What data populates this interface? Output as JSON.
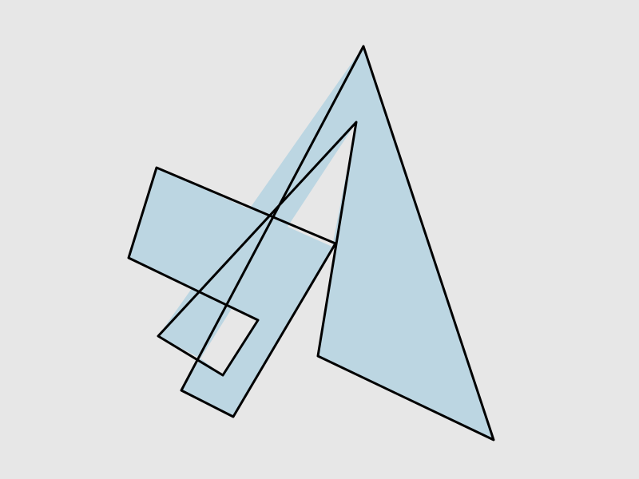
{
  "colors": {
    "background": "#e7e7e7",
    "fill": "#bcd6e2",
    "stroke": "#000000"
  }
}
